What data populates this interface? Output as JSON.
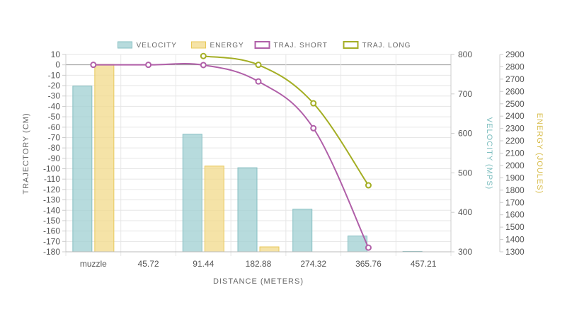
{
  "chart_data": {
    "type": "bar",
    "categories": [
      "muzzle",
      "45.72",
      "91.44",
      "182.88",
      "274.32",
      "365.76",
      "457.21"
    ],
    "xlabel": "DISTANCE (METERS)",
    "y_left_label": "TRAJECTORY (CM)",
    "y_right1_label": "VELOCITY (MPS)",
    "y_right2_label": "ENERGY (JOULES)",
    "y_left_range": [
      -180,
      10
    ],
    "y_left_ticks": [
      10,
      0,
      -10,
      -20,
      -30,
      -40,
      -50,
      -60,
      -70,
      -80,
      -90,
      -100,
      -110,
      -120,
      -130,
      -140,
      -150,
      -160,
      -170,
      -180
    ],
    "y_right1_range": [
      300,
      800
    ],
    "y_right1_ticks": [
      800,
      700,
      600,
      500,
      400,
      300
    ],
    "y_right2_range": [
      1300,
      2900
    ],
    "y_right2_ticks": [
      2900,
      2800,
      2700,
      2600,
      2500,
      2400,
      2300,
      2200,
      2100,
      2000,
      1900,
      1800,
      1700,
      1600,
      1500,
      1400,
      1300
    ],
    "grid": true,
    "legend_position": "top",
    "series": [
      {
        "name": "VELOCITY",
        "kind": "bar",
        "axis": "velocity",
        "color": "#9fcfd1",
        "stroke": "#86bfc2",
        "values": [
          720,
          null,
          598,
          513,
          408,
          340,
          301
        ]
      },
      {
        "name": "ENERGY",
        "kind": "bar",
        "axis": "energy",
        "color": "#f2d98a",
        "stroke": "#e8c85a",
        "values": [
          2820,
          null,
          1995,
          1340,
          null,
          null,
          null
        ]
      },
      {
        "name": "TRAJ. SHORT",
        "kind": "line",
        "axis": "trajectory",
        "color": "#b05fa8",
        "values": [
          0,
          null,
          -0.2,
          -16,
          -61,
          -176,
          null
        ],
        "plot_values": [
          0,
          0,
          -0.2,
          -16,
          -61,
          -176,
          null
        ]
      },
      {
        "name": "TRAJ. LONG",
        "kind": "line",
        "axis": "trajectory",
        "color": "#a4ae24",
        "values": [
          null,
          null,
          8.5,
          0,
          -37,
          -116,
          null
        ]
      }
    ]
  }
}
